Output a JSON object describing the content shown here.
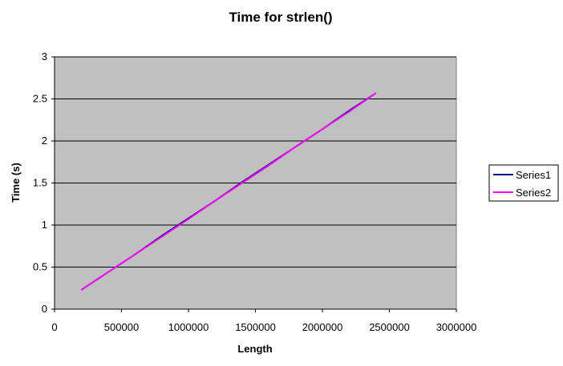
{
  "chart_data": {
    "type": "line",
    "title": "Time for strlen()",
    "xlabel": "Length",
    "ylabel": "Time (s)",
    "xlim": [
      0,
      3000000
    ],
    "ylim": [
      0,
      3
    ],
    "x_ticks": [
      0,
      500000,
      1000000,
      1500000,
      2000000,
      2500000,
      3000000
    ],
    "y_ticks": [
      0,
      0.5,
      1,
      1.5,
      2,
      2.5,
      3
    ],
    "x_tick_labels": [
      "0",
      "500000",
      "1000000",
      "1500000",
      "2000000",
      "2500000",
      "3000000"
    ],
    "y_tick_labels": [
      "0",
      "0.5",
      "1",
      "1.5",
      "2",
      "2.5",
      "3"
    ],
    "grid": "horizontal",
    "plot_background": "#c0c0c0",
    "legend_position": "right",
    "series": [
      {
        "name": "Series1",
        "color": "#000080",
        "x": [
          200000,
          400000,
          600000,
          800000,
          1000000,
          1200000,
          1400000,
          1600000,
          1800000,
          2000000,
          2200000,
          2400000
        ],
        "y": [
          0.23,
          0.44,
          0.65,
          0.87,
          1.08,
          1.29,
          1.51,
          1.72,
          1.93,
          2.14,
          2.36,
          2.57
        ]
      },
      {
        "name": "Series2",
        "color": "#ff00ff",
        "x": [
          200000,
          400000,
          600000,
          800000,
          1000000,
          1200000,
          1400000,
          1600000,
          1800000,
          2000000,
          2200000,
          2400000
        ],
        "y": [
          0.23,
          0.44,
          0.65,
          0.86,
          1.07,
          1.29,
          1.5,
          1.71,
          1.93,
          2.14,
          2.35,
          2.57
        ]
      }
    ]
  }
}
